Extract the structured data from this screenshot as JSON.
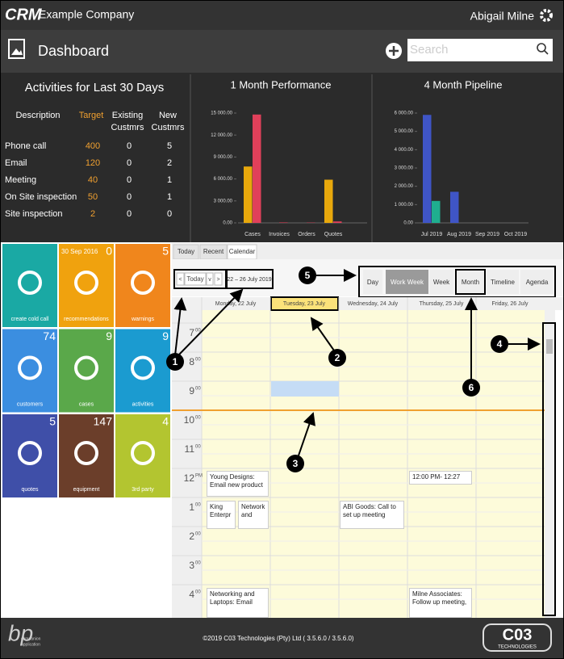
{
  "header": {
    "logo": "CRM",
    "company": "Example Company",
    "user": "Abigail Milne"
  },
  "toolbar": {
    "title": "Dashboard",
    "search_placeholder": "Search"
  },
  "activities": {
    "title": "Activities for Last 30 Days",
    "columns": [
      [
        "Description"
      ],
      [
        "Target"
      ],
      [
        "Existing",
        "Custmrs"
      ],
      [
        "New",
        "Custmrs"
      ]
    ],
    "rows": [
      [
        "Phone call",
        400,
        0,
        5
      ],
      [
        "Email",
        120,
        0,
        2
      ],
      [
        "Meeting",
        40,
        0,
        1
      ],
      [
        "On Site inspection",
        50,
        0,
        1
      ],
      [
        "Site inspection",
        2,
        0,
        0
      ]
    ]
  },
  "performance_chart": {
    "type": "bar",
    "title": "1 Month Performance",
    "categories": [
      "Cases",
      "Invoices",
      "Orders",
      "Quotes"
    ],
    "series": [
      {
        "color": "#e8a80c",
        "values": [
          7700,
          0,
          0,
          5900
        ]
      },
      {
        "color": "#e0405a",
        "values": [
          14800,
          60,
          40,
          200
        ]
      }
    ],
    "ylim": [
      0,
      15000
    ],
    "yticks": [
      {
        "value": 0,
        "label": "0.00"
      },
      {
        "value": 3000,
        "label": "3 000.00"
      },
      {
        "value": 6000,
        "label": "6 000.00"
      },
      {
        "value": 9000,
        "label": "9 000.00"
      },
      {
        "value": 12000,
        "label": "12 000.00"
      },
      {
        "value": 15000,
        "label": "15 000.00"
      }
    ]
  },
  "pipeline_chart": {
    "type": "bar",
    "title": "4 Month Pipeline",
    "categories": [
      "Jul 2019",
      "Aug 2019",
      "Sep 2019",
      "Oct 2019"
    ],
    "series": [
      {
        "color": "#3f55c6",
        "values": [
          5900,
          1700,
          0,
          0
        ]
      },
      {
        "color": "#1fae8f",
        "values": [
          1200,
          0,
          0,
          0
        ]
      }
    ],
    "ylim": [
      0,
      6000
    ],
    "yticks": [
      {
        "value": 0,
        "label": "0.00"
      },
      {
        "value": 1000,
        "label": "1 000.00"
      },
      {
        "value": 2000,
        "label": "2 000.00"
      },
      {
        "value": 3000,
        "label": "3 000.00"
      },
      {
        "value": 4000,
        "label": "4 000.00"
      },
      {
        "value": 5000,
        "label": "5 000.00"
      },
      {
        "value": 6000,
        "label": "6 000.00"
      }
    ]
  },
  "tiles": [
    {
      "label": "create cold call",
      "color": "#1aa9a4"
    },
    {
      "label": "recommendations",
      "date": "30 Sep 2016",
      "count": 0,
      "color": "#f0a20e"
    },
    {
      "label": "warnings",
      "count": 5,
      "color": "#f0861c"
    },
    {
      "label": "customers",
      "count": 74,
      "color": "#3b8ee0"
    },
    {
      "label": "cases",
      "count": 9,
      "color": "#5aa84a"
    },
    {
      "label": "activities",
      "count": 9,
      "color": "#1b9bd0"
    },
    {
      "label": "quotes",
      "count": 5,
      "color": "#3f4fa8"
    },
    {
      "label": "equipment",
      "count": 147,
      "color": "#6b3e2a"
    },
    {
      "label": "3rd party",
      "count": 4,
      "color": "#b3c530"
    }
  ],
  "calendar": {
    "tabs": [
      "Today",
      "Recent",
      "Calendar"
    ],
    "nav": [
      "<",
      "Today",
      "v",
      ">"
    ],
    "date_range": "22 – 26 July 2019",
    "views": [
      "Day",
      "Work Week",
      "Week",
      "Month",
      "Timeline",
      "Agenda"
    ],
    "days": [
      "Monday, 22 July",
      "Tuesday, 23 July",
      "Wednesday, 24 July",
      "Thursday, 25 July",
      "Friday, 26 July"
    ],
    "times": [
      [
        "7",
        "00"
      ],
      [
        "8",
        "00"
      ],
      [
        "9",
        "00"
      ],
      [
        "10",
        "00"
      ],
      [
        "11",
        "00"
      ],
      [
        "12",
        "PM"
      ],
      [
        "1",
        "00"
      ],
      [
        "2",
        "00"
      ],
      [
        "3",
        "00"
      ],
      [
        "4",
        "00"
      ]
    ],
    "events": [
      "Young Designs: Email new product",
      "King Enterpr",
      "Network and",
      "ABI Goods: Call to set up meeting",
      "12:00 PM- 12:27",
      "Networking and Laptops: Email",
      "Milne Associates: Follow up meeting,"
    ]
  },
  "annotations": [
    1,
    2,
    3,
    4,
    5,
    6
  ],
  "footer": {
    "brand": "bp",
    "tagline": [
      "companion",
      "application"
    ],
    "copyright": "©2019 C03 Technologies (Pty) Ltd ( 3.5.6.0 / 3.5.6.0)",
    "logo": "C03",
    "logo_sub": "TECHNOLOGIES"
  }
}
